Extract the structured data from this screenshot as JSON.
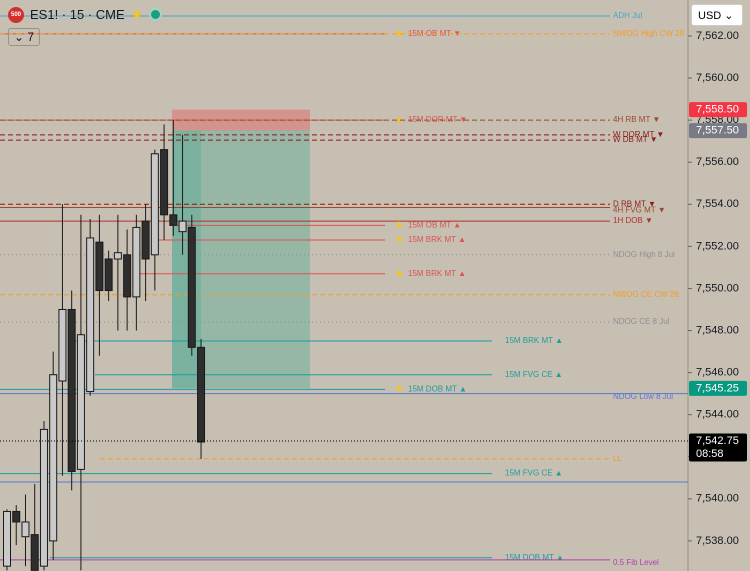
{
  "chart_data": {
    "type": "candlestick",
    "title": "ES1! · 15 · CME",
    "symbol_badge": "500",
    "indicator_count": "7",
    "currency": "USD",
    "series": {
      "open": [
        7536.8,
        7539.4,
        7538.2,
        7538.3,
        7536.8,
        7538.0,
        7545.6,
        7549.0,
        7541.4,
        7545.1,
        7552.2,
        7551.4,
        7551.4,
        7551.6,
        7549.6,
        7553.2,
        7551.6,
        7556.6,
        7553.5,
        7552.7,
        7552.9,
        7547.2
      ],
      "high": [
        7539.5,
        7539.7,
        7540.2,
        7540.7,
        7543.7,
        7547.0,
        7554.0,
        7549.9,
        7553.5,
        7553.3,
        7553.5,
        7551.8,
        7553.5,
        7552.8,
        7553.5,
        7554.0,
        7556.6,
        7557.8,
        7558.0,
        7557.3,
        7553.5,
        7547.6
      ],
      "low": [
        7536.6,
        7537.8,
        7536.8,
        7536.6,
        7536.6,
        7537.1,
        7541.1,
        7540.4,
        7536.6,
        7544.9,
        7546.8,
        7549.4,
        7548.0,
        7548.0,
        7548.0,
        7549.4,
        7549.9,
        7552.3,
        7552.5,
        7551.6,
        7546.8,
        7541.9
      ],
      "close": [
        7539.4,
        7538.9,
        7538.9,
        7536.6,
        7543.3,
        7545.9,
        7549.0,
        7541.3,
        7547.8,
        7552.4,
        7549.9,
        7549.9,
        7551.7,
        7549.6,
        7552.9,
        7551.4,
        7556.4,
        7553.5,
        7553.0,
        7553.2,
        7547.2,
        7542.7
      ],
      "up_color": "#c9c9c9",
      "down_color": "#2e2e2e"
    },
    "ylim": [
      7536.57,
      7563.71
    ],
    "yticks": [
      {
        "value": 7538,
        "label": "7,538.00"
      },
      {
        "value": 7540,
        "label": "7,540.00"
      },
      {
        "value": 7542,
        "label": "7,542.00"
      },
      {
        "value": 7544,
        "label": "7,544.00"
      },
      {
        "value": 7546,
        "label": "7,546.00"
      },
      {
        "value": 7548,
        "label": "7,548.00"
      },
      {
        "value": 7550,
        "label": "7,550.00"
      },
      {
        "value": 7552,
        "label": "7,552.00"
      },
      {
        "value": 7554,
        "label": "7,554.00"
      },
      {
        "value": 7556,
        "label": "7,556.00"
      },
      {
        "value": 7558,
        "label": "7,558.00"
      },
      {
        "value": 7560,
        "label": "7,560.00"
      },
      {
        "value": 7562,
        "label": "7,562.00"
      }
    ],
    "levels": [
      {
        "label": "ADH Jul",
        "value": 7562.95,
        "color": "#4aa3cf",
        "style": "solid"
      },
      {
        "label": "15M OB MT ▼",
        "value": 7562.1,
        "color": "#d9534f",
        "style": "solid"
      },
      {
        "label": "NWOG High CW 28",
        "value": 7562.1,
        "color": "#f39c24",
        "style": "dashed"
      },
      {
        "label": "15M DOR MT ▼",
        "value": 7558.0,
        "color": "#d9534f",
        "style": "solid"
      },
      {
        "label": "4H RB MT ▼",
        "value": 7558.0,
        "color": "#9a4a2a",
        "style": "dashed"
      },
      {
        "label": "W DOR MT ▼",
        "value": 7557.3,
        "color": "#8b1a1a",
        "style": "dashed"
      },
      {
        "label": "W DB MT ▼",
        "value": 7557.05,
        "color": "#8b1a1a",
        "style": "dashed"
      },
      {
        "label": "D RB MT ▼",
        "value": 7554.0,
        "color": "#8b1a1a",
        "style": "dashed"
      },
      {
        "label": "4H FVG MT ▼",
        "value": 7553.85,
        "color": "#9a4a2a",
        "style": "solid"
      },
      {
        "label": "1H DOB ▼",
        "value": 7553.2,
        "color": "#b03030",
        "style": "solid"
      },
      {
        "label": "15M OB MT ▲",
        "value": 7553.0,
        "color": "#d9534f",
        "style": "solid"
      },
      {
        "label": "15M BRK MT ▲",
        "value": 7552.3,
        "color": "#d9534f",
        "style": "solid"
      },
      {
        "label": "NDOG High 8 Jul",
        "value": 7551.6,
        "color": "#8f8f8f",
        "style": "dotted"
      },
      {
        "label": "15M BRK MT ▲",
        "value": 7550.7,
        "color": "#d9534f",
        "style": "solid"
      },
      {
        "label": "NWOG CE CW 28",
        "value": 7549.7,
        "color": "#f39c24",
        "style": "dashed"
      },
      {
        "label": "NDOG CE 8 Jul",
        "value": 7548.4,
        "color": "#8f8f8f",
        "style": "dotted"
      },
      {
        "label": "15M BRK MT ▲",
        "value": 7547.5,
        "color": "#1a9e9e",
        "style": "solid"
      },
      {
        "label": "15M FVG CE ▲",
        "value": 7545.9,
        "color": "#1a9e9e",
        "style": "solid"
      },
      {
        "label": "15M DOB MT ▲",
        "value": 7545.2,
        "color": "#1a9e9e",
        "style": "solid"
      },
      {
        "label": "NDOG Low 8 Jul",
        "value": 7545.0,
        "color": "#5a78d0",
        "style": "solid"
      },
      {
        "label": "LL",
        "value": 7541.9,
        "color": "#f39c24",
        "style": "dashed"
      },
      {
        "label": "15M FVG CE ▲",
        "value": 7541.2,
        "color": "#1a9e9e",
        "style": "solid"
      },
      {
        "label": "15M DOB MT ▲",
        "value": 7537.2,
        "color": "#1a9e9e",
        "style": "solid"
      },
      {
        "label": "0.5 Fib Level",
        "value": 7537.1,
        "color": "#b040b0",
        "style": "solid"
      }
    ],
    "lines": [
      {
        "value": 7540.8,
        "color": "#5a78d0"
      }
    ],
    "position": {
      "stop": 7558.5,
      "entry": 7557.5,
      "target": 7545.25,
      "stop_color": "#e06060",
      "target_color": "#3aa890"
    },
    "badges": [
      {
        "value": 7558.5,
        "label": "7,558.50",
        "color": "#f23645"
      },
      {
        "value": 7557.5,
        "label": "7,557.50",
        "color": "#787b86"
      },
      {
        "value": 7545.25,
        "label": "7,545.25",
        "color": "#089981"
      },
      {
        "value": 7542.75,
        "label": "7,542.75",
        "color": "#000000",
        "countdown": "08:58"
      }
    ]
  }
}
